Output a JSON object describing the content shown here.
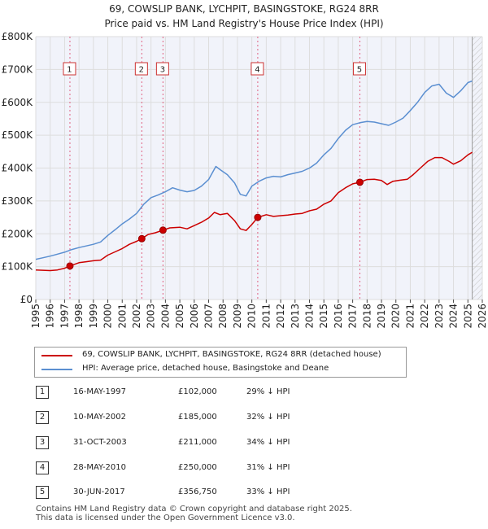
{
  "chart_data": {
    "type": "line",
    "title": "69, COWSLIP BANK, LYCHPIT, BASINGSTOKE, RG24 8RR",
    "subtitle": "Price paid vs. HM Land Registry's House Price Index (HPI)",
    "xlim": [
      1995,
      2026
    ],
    "ylim": [
      0,
      800000
    ],
    "x_ticks": [
      "1995",
      "1996",
      "1997",
      "1998",
      "1999",
      "2000",
      "2001",
      "2002",
      "2003",
      "2004",
      "2005",
      "2006",
      "2007",
      "2008",
      "2009",
      "2010",
      "2011",
      "2012",
      "2013",
      "2014",
      "2015",
      "2016",
      "2017",
      "2018",
      "2019",
      "2020",
      "2021",
      "2022",
      "2023",
      "2024",
      "2025",
      "2026"
    ],
    "y_ticks": [
      {
        "value": 0,
        "label": "£0"
      },
      {
        "value": 100000,
        "label": "£100K"
      },
      {
        "value": 200000,
        "label": "£200K"
      },
      {
        "value": 300000,
        "label": "£300K"
      },
      {
        "value": 400000,
        "label": "£400K"
      },
      {
        "value": 500000,
        "label": "£500K"
      },
      {
        "value": 600000,
        "label": "£600K"
      },
      {
        "value": 700000,
        "label": "£700K"
      },
      {
        "value": 800000,
        "label": "£800K"
      }
    ],
    "series": [
      {
        "name": "69, COWSLIP BANK, LYCHPIT, BASINGSTOKE, RG24 8RR (detached house)",
        "color": "#cc0000",
        "points": [
          [
            1995.0,
            90000
          ],
          [
            1995.5,
            89000
          ],
          [
            1996.0,
            88000
          ],
          [
            1996.5,
            90000
          ],
          [
            1997.0,
            95000
          ],
          [
            1997.37,
            102000
          ],
          [
            1998.0,
            112000
          ],
          [
            1998.5,
            115000
          ],
          [
            1999.0,
            118000
          ],
          [
            1999.5,
            120000
          ],
          [
            2000.0,
            135000
          ],
          [
            2000.5,
            145000
          ],
          [
            2001.0,
            155000
          ],
          [
            2001.5,
            168000
          ],
          [
            2002.0,
            177000
          ],
          [
            2002.36,
            185000
          ],
          [
            2002.8,
            198000
          ],
          [
            2003.3,
            203000
          ],
          [
            2003.83,
            211000
          ],
          [
            2004.3,
            218000
          ],
          [
            2005.0,
            220000
          ],
          [
            2005.5,
            215000
          ],
          [
            2006.0,
            225000
          ],
          [
            2006.5,
            235000
          ],
          [
            2007.0,
            248000
          ],
          [
            2007.4,
            265000
          ],
          [
            2007.8,
            258000
          ],
          [
            2008.3,
            262000
          ],
          [
            2008.8,
            240000
          ],
          [
            2009.2,
            215000
          ],
          [
            2009.6,
            210000
          ],
          [
            2010.0,
            228000
          ],
          [
            2010.41,
            250000
          ],
          [
            2011.0,
            258000
          ],
          [
            2011.5,
            253000
          ],
          [
            2012.0,
            255000
          ],
          [
            2012.5,
            257000
          ],
          [
            2013.0,
            260000
          ],
          [
            2013.5,
            262000
          ],
          [
            2014.0,
            270000
          ],
          [
            2014.5,
            275000
          ],
          [
            2015.0,
            290000
          ],
          [
            2015.5,
            300000
          ],
          [
            2016.0,
            325000
          ],
          [
            2016.5,
            340000
          ],
          [
            2017.0,
            352000
          ],
          [
            2017.5,
            356750
          ],
          [
            2018.0,
            365000
          ],
          [
            2018.5,
            366000
          ],
          [
            2019.0,
            362000
          ],
          [
            2019.4,
            350000
          ],
          [
            2019.8,
            360000
          ],
          [
            2020.3,
            363000
          ],
          [
            2020.8,
            366000
          ],
          [
            2021.2,
            380000
          ],
          [
            2021.7,
            400000
          ],
          [
            2022.2,
            420000
          ],
          [
            2022.7,
            432000
          ],
          [
            2023.2,
            432000
          ],
          [
            2023.7,
            420000
          ],
          [
            2024.0,
            412000
          ],
          [
            2024.5,
            422000
          ],
          [
            2025.0,
            440000
          ],
          [
            2025.3,
            448000
          ]
        ]
      },
      {
        "name": "HPI: Average price, detached house, Basingstoke and Deane",
        "color": "#5b8fd1",
        "points": [
          [
            1995.0,
            122000
          ],
          [
            1995.5,
            127000
          ],
          [
            1996.0,
            132000
          ],
          [
            1996.5,
            138000
          ],
          [
            1997.0,
            144000
          ],
          [
            1997.5,
            152000
          ],
          [
            1998.0,
            158000
          ],
          [
            1998.5,
            163000
          ],
          [
            1999.0,
            168000
          ],
          [
            1999.5,
            175000
          ],
          [
            2000.0,
            195000
          ],
          [
            2000.5,
            212000
          ],
          [
            2001.0,
            230000
          ],
          [
            2001.5,
            245000
          ],
          [
            2002.0,
            262000
          ],
          [
            2002.5,
            290000
          ],
          [
            2003.0,
            310000
          ],
          [
            2003.5,
            318000
          ],
          [
            2004.0,
            328000
          ],
          [
            2004.5,
            340000
          ],
          [
            2005.0,
            333000
          ],
          [
            2005.5,
            328000
          ],
          [
            2006.0,
            332000
          ],
          [
            2006.5,
            345000
          ],
          [
            2007.0,
            365000
          ],
          [
            2007.5,
            405000
          ],
          [
            2007.8,
            395000
          ],
          [
            2008.3,
            380000
          ],
          [
            2008.8,
            355000
          ],
          [
            2009.2,
            320000
          ],
          [
            2009.6,
            315000
          ],
          [
            2010.0,
            345000
          ],
          [
            2010.5,
            360000
          ],
          [
            2011.0,
            370000
          ],
          [
            2011.5,
            375000
          ],
          [
            2012.0,
            373000
          ],
          [
            2012.5,
            380000
          ],
          [
            2013.0,
            385000
          ],
          [
            2013.5,
            390000
          ],
          [
            2014.0,
            400000
          ],
          [
            2014.5,
            415000
          ],
          [
            2015.0,
            440000
          ],
          [
            2015.5,
            460000
          ],
          [
            2016.0,
            490000
          ],
          [
            2016.5,
            515000
          ],
          [
            2017.0,
            532000
          ],
          [
            2017.5,
            538000
          ],
          [
            2018.0,
            542000
          ],
          [
            2018.5,
            540000
          ],
          [
            2019.0,
            535000
          ],
          [
            2019.5,
            530000
          ],
          [
            2020.0,
            540000
          ],
          [
            2020.5,
            552000
          ],
          [
            2021.0,
            575000
          ],
          [
            2021.5,
            600000
          ],
          [
            2022.0,
            630000
          ],
          [
            2022.5,
            650000
          ],
          [
            2023.0,
            655000
          ],
          [
            2023.5,
            628000
          ],
          [
            2024.0,
            615000
          ],
          [
            2024.5,
            635000
          ],
          [
            2025.0,
            660000
          ],
          [
            2025.3,
            665000
          ]
        ]
      }
    ],
    "sales": [
      {
        "label": "1",
        "date": "16-MAY-1997",
        "x": 1997.37,
        "price": 102000,
        "price_label": "£102,000",
        "hpi_diff": "29% ↓ HPI"
      },
      {
        "label": "2",
        "date": "10-MAY-2002",
        "x": 2002.36,
        "price": 185000,
        "price_label": "£185,000",
        "hpi_diff": "32% ↓ HPI"
      },
      {
        "label": "3",
        "date": "31-OCT-2003",
        "x": 2003.83,
        "price": 211000,
        "price_label": "£211,000",
        "hpi_diff": "34% ↓ HPI"
      },
      {
        "label": "4",
        "date": "28-MAY-2010",
        "x": 2010.41,
        "price": 250000,
        "price_label": "£250,000",
        "hpi_diff": "31% ↓ HPI"
      },
      {
        "label": "5",
        "date": "30-JUN-2017",
        "x": 2017.5,
        "price": 356750,
        "price_label": "£356,750",
        "hpi_diff": "33% ↓ HPI"
      }
    ],
    "data_end_x": 2025.3,
    "colors": {
      "grid": "#dddddd",
      "plot_bg": "#f1f3fa",
      "hatch": "#c8c8c8",
      "vline": "#e06080"
    }
  },
  "legend": {
    "property_label": "69, COWSLIP BANK, LYCHPIT, BASINGSTOKE, RG24 8RR (detached house)",
    "hpi_label": "HPI: Average price, detached house, Basingstoke and Deane"
  },
  "footer": {
    "line1": "Contains HM Land Registry data © Crown copyright and database right 2025.",
    "line2": "This data is licensed under the Open Government Licence v3.0."
  }
}
